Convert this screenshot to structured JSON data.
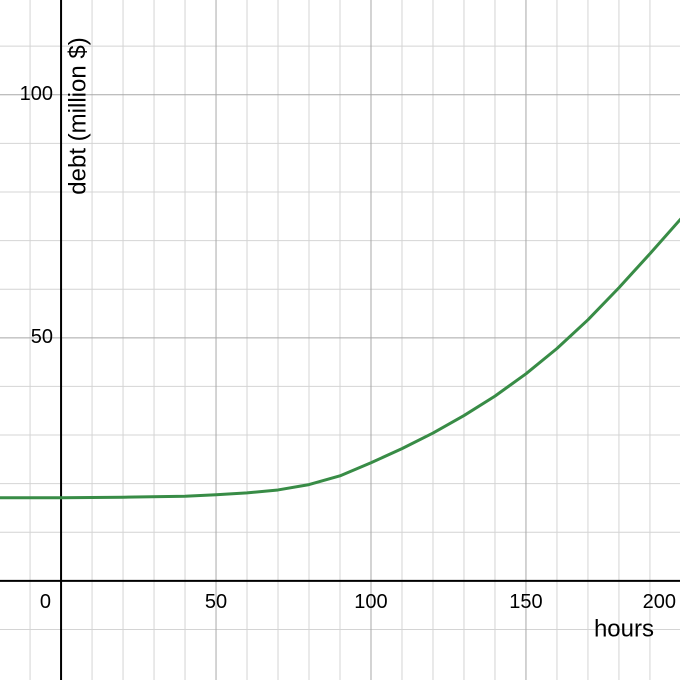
{
  "chart_data": {
    "type": "line",
    "x_label": "hours",
    "y_label": "debt (million $)",
    "xlim": [
      -19.7,
      199.7
    ],
    "ylim": [
      -20.4,
      119.5
    ],
    "xticks": [
      0,
      50,
      100,
      150,
      200
    ],
    "yticks": [
      50,
      100
    ],
    "xgrid": [
      -10,
      10,
      20,
      30,
      40,
      60,
      70,
      80,
      90,
      110,
      120,
      130,
      140,
      160,
      170,
      180,
      190
    ],
    "ygrid": [
      -10,
      10,
      20,
      30,
      40,
      60,
      70,
      80,
      90,
      110
    ],
    "grid": true,
    "series": [
      {
        "color": "#388c46",
        "x": [
          -20,
          0,
          20,
          40,
          50,
          60,
          70,
          80,
          90,
          100,
          110,
          120,
          130,
          140,
          150,
          160,
          170,
          180,
          190,
          200
        ],
        "values": [
          17.1,
          17.1,
          17.2,
          17.4,
          17.7,
          18.1,
          18.7,
          19.8,
          21.6,
          24.3,
          27.2,
          30.4,
          34.0,
          38.0,
          42.6,
          47.8,
          53.7,
          60.3,
          67.3,
          74.5
        ]
      }
    ]
  }
}
